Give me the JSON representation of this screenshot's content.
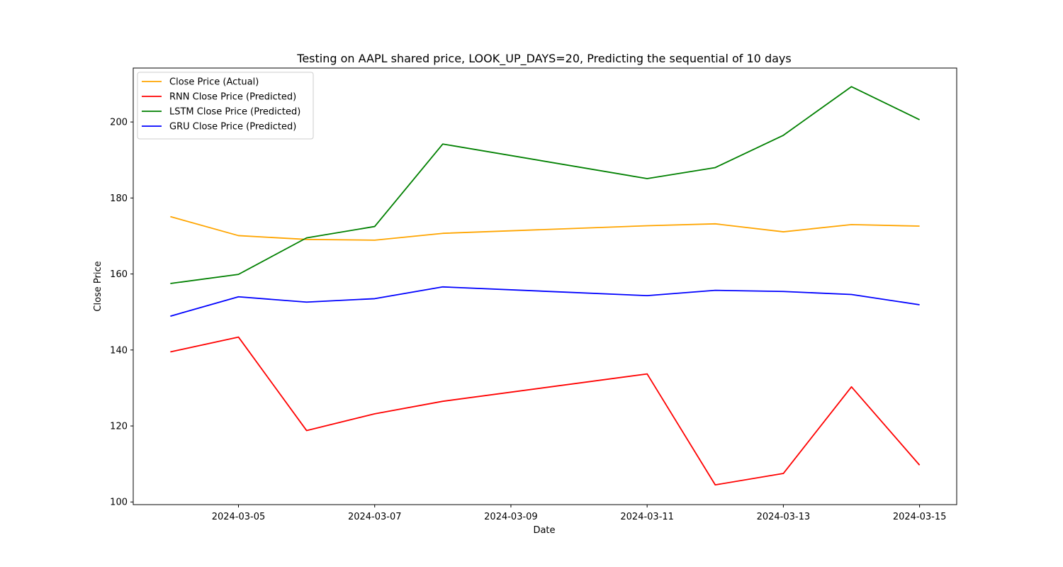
{
  "chart_data": {
    "type": "line",
    "title": "Testing on AAPL shared price, LOOK_UP_DAYS=20, Predicting the sequential of 10 days",
    "xlabel": "Date",
    "ylabel": "Close Price",
    "x": [
      "2024-03-04",
      "2024-03-05",
      "2024-03-06",
      "2024-03-07",
      "2024-03-08",
      "2024-03-11",
      "2024-03-12",
      "2024-03-13",
      "2024-03-14",
      "2024-03-15"
    ],
    "xlim": [
      "2024-03-03T10:55",
      "2024-03-15T13:05"
    ],
    "xticks": [
      "2024-03-05",
      "2024-03-07",
      "2024-03-09",
      "2024-03-11",
      "2024-03-13",
      "2024-03-15"
    ],
    "ylim": [
      99.3,
      214.2
    ],
    "yticks": [
      100,
      120,
      140,
      160,
      180,
      200
    ],
    "legend_position": "upper-left",
    "series": [
      {
        "name": "Close Price (Actual)",
        "color": "#ffa500",
        "values": [
          175.1,
          170.1,
          169.1,
          168.9,
          170.7,
          172.7,
          173.2,
          171.1,
          173.0,
          172.6
        ]
      },
      {
        "name": "RNN Close Price (Predicted)",
        "color": "#ff0000",
        "values": [
          139.5,
          143.4,
          118.8,
          123.2,
          126.5,
          133.7,
          104.5,
          107.5,
          130.3,
          109.7
        ]
      },
      {
        "name": "LSTM Close Price (Predicted)",
        "color": "#008000",
        "values": [
          157.5,
          159.9,
          169.5,
          172.5,
          194.2,
          185.1,
          188.0,
          196.5,
          209.3,
          200.6
        ]
      },
      {
        "name": "GRU Close Price (Predicted)",
        "color": "#0000ff",
        "values": [
          148.9,
          154.0,
          152.6,
          153.5,
          156.6,
          154.3,
          155.7,
          155.4,
          154.6,
          151.9
        ]
      }
    ]
  }
}
